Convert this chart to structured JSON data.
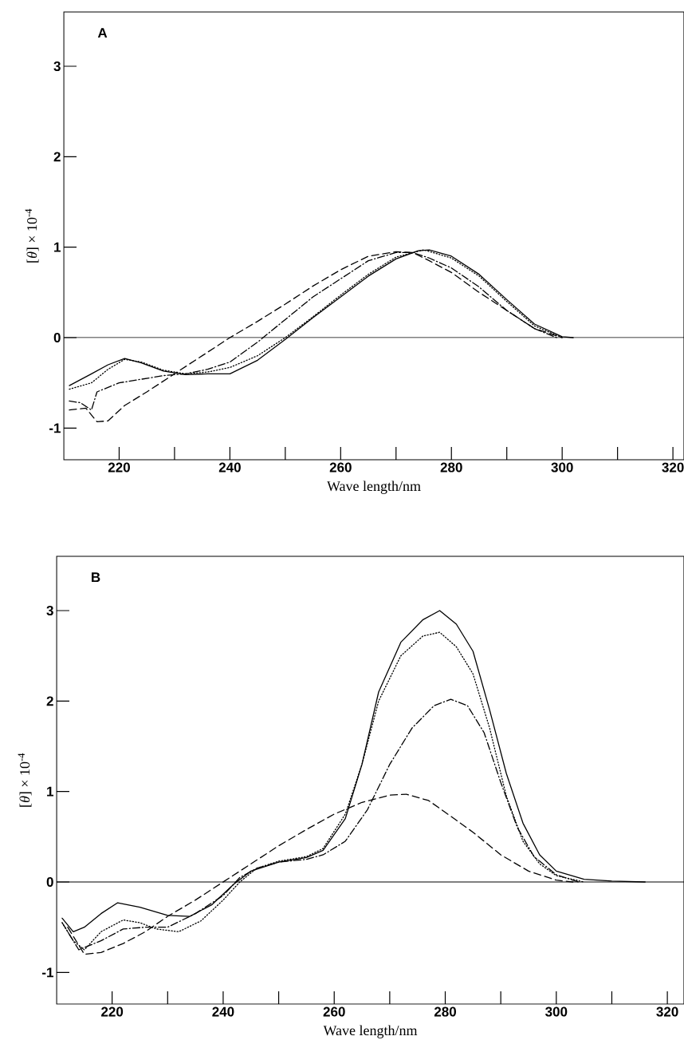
{
  "chart_data": [
    {
      "type": "line",
      "annotations": [
        "A"
      ],
      "xlabel": "Wave length/nm",
      "ylabel": "[*θ*] × 10$^{-4}$",
      "xlim": [
        210,
        322
      ],
      "ylim": [
        -1.35,
        3.6
      ],
      "xticks": [
        220,
        {
          "value": 230,
          "label": null
        },
        240,
        {
          "value": 250,
          "label": null
        },
        260,
        {
          "value": 270,
          "label": null
        },
        280,
        {
          "value": 290,
          "label": null
        },
        300,
        {
          "value": 310,
          "label": null
        },
        320
      ],
      "yticks": [
        -1,
        0,
        1,
        2,
        3
      ],
      "ref_lines": [
        {
          "axis": "y",
          "value": 0,
          "color": "#000000",
          "line_style": "solid"
        }
      ],
      "grid": false,
      "marker": "none",
      "series": [
        {
          "color": "#000000",
          "line_style": "solid",
          "x": [
            211,
            215,
            218,
            221,
            224,
            228,
            232,
            236,
            240,
            245,
            250,
            255,
            260,
            265,
            270,
            274,
            276,
            280,
            285,
            290,
            295,
            300,
            302
          ],
          "values": [
            -0.53,
            -0.4,
            -0.3,
            -0.23,
            -0.28,
            -0.37,
            -0.41,
            -0.4,
            -0.4,
            -0.25,
            -0.02,
            0.22,
            0.45,
            0.68,
            0.87,
            0.96,
            0.97,
            0.9,
            0.7,
            0.42,
            0.15,
            0.01,
            0
          ]
        },
        {
          "color": "#000000",
          "line_style": "dotted",
          "x": [
            211,
            215,
            218,
            221,
            224,
            228,
            232,
            236,
            240,
            245,
            250,
            255,
            260,
            265,
            270,
            275,
            280,
            285,
            290,
            295,
            300
          ],
          "values": [
            -0.57,
            -0.5,
            -0.35,
            -0.24,
            -0.27,
            -0.36,
            -0.4,
            -0.38,
            -0.33,
            -0.2,
            0,
            0.23,
            0.47,
            0.7,
            0.89,
            0.97,
            0.88,
            0.68,
            0.4,
            0.13,
            0
          ]
        },
        {
          "color": "#000000",
          "line_style": "dashdot",
          "x": [
            211,
            213,
            215,
            216,
            220,
            224,
            228,
            232,
            236,
            240,
            245,
            250,
            255,
            260,
            265,
            270,
            273,
            276,
            280,
            285,
            290,
            295,
            299
          ],
          "values": [
            -0.7,
            -0.72,
            -0.8,
            -0.6,
            -0.5,
            -0.46,
            -0.42,
            -0.4,
            -0.35,
            -0.27,
            -0.05,
            0.2,
            0.45,
            0.65,
            0.85,
            0.94,
            0.94,
            0.88,
            0.77,
            0.56,
            0.3,
            0.1,
            0
          ]
        },
        {
          "color": "#000000",
          "line_style": "dashed",
          "x": [
            211,
            214,
            216,
            218,
            221,
            225,
            230,
            235,
            240,
            245,
            250,
            255,
            260,
            265,
            270,
            273,
            276,
            280,
            285,
            290,
            295,
            300
          ],
          "values": [
            -0.8,
            -0.78,
            -0.93,
            -0.92,
            -0.75,
            -0.6,
            -0.4,
            -0.2,
            0,
            0.18,
            0.37,
            0.57,
            0.75,
            0.9,
            0.95,
            0.94,
            0.85,
            0.72,
            0.5,
            0.3,
            0.1,
            0
          ]
        }
      ]
    },
    {
      "type": "line",
      "annotations": [
        "B"
      ],
      "xlabel": "Wave length/nm",
      "ylabel": "[*θ*] × 10$^{-4}$",
      "xlim": [
        210,
        323
      ],
      "ylim": [
        -1.35,
        3.6
      ],
      "xticks": [
        220,
        {
          "value": 230,
          "label": null
        },
        240,
        {
          "value": 250,
          "label": null
        },
        260,
        {
          "value": 270,
          "label": null
        },
        280,
        {
          "value": 290,
          "label": null
        },
        300,
        {
          "value": 310,
          "label": null
        },
        320
      ],
      "yticks": [
        -1,
        0,
        1,
        2,
        3
      ],
      "ref_lines": [
        {
          "axis": "y",
          "value": 0,
          "color": "#000000",
          "line_style": "solid"
        }
      ],
      "grid": false,
      "marker": "none",
      "series": [
        {
          "color": "#000000",
          "line_style": "solid",
          "x": [
            211,
            213,
            215,
            218,
            221,
            225,
            230,
            234,
            238,
            242,
            245,
            250,
            255,
            258,
            262,
            265,
            268,
            272,
            276,
            279,
            282,
            285,
            288,
            291,
            294,
            297,
            300,
            305,
            310,
            316
          ],
          "values": [
            -0.4,
            -0.55,
            -0.5,
            -0.35,
            -0.23,
            -0.28,
            -0.37,
            -0.38,
            -0.25,
            -0.02,
            0.12,
            0.22,
            0.27,
            0.35,
            0.7,
            1.3,
            2.1,
            2.65,
            2.9,
            3.0,
            2.85,
            2.55,
            1.9,
            1.2,
            0.65,
            0.3,
            0.12,
            0.03,
            0.01,
            0
          ]
        },
        {
          "color": "#000000",
          "line_style": "dotted",
          "x": [
            211,
            213,
            215,
            218,
            222,
            225,
            228,
            232,
            236,
            240,
            243,
            246,
            250,
            255,
            258,
            262,
            265,
            268,
            272,
            276,
            279,
            282,
            285,
            288,
            291,
            294,
            297,
            300,
            305
          ],
          "values": [
            -0.45,
            -0.65,
            -0.75,
            -0.55,
            -0.42,
            -0.45,
            -0.52,
            -0.55,
            -0.43,
            -0.2,
            0,
            0.15,
            0.23,
            0.28,
            0.37,
            0.75,
            1.3,
            2.0,
            2.5,
            2.72,
            2.76,
            2.6,
            2.3,
            1.7,
            0.95,
            0.45,
            0.2,
            0.07,
            0
          ]
        },
        {
          "color": "#000000",
          "line_style": "dashdot",
          "x": [
            211,
            214,
            218,
            222,
            226,
            230,
            235,
            240,
            243,
            246,
            250,
            255,
            258,
            262,
            266,
            270,
            274,
            278,
            281,
            284,
            287,
            290,
            293,
            296,
            300,
            304
          ],
          "values": [
            -0.45,
            -0.75,
            -0.65,
            -0.52,
            -0.5,
            -0.5,
            -0.35,
            -0.15,
            0.05,
            0.15,
            0.22,
            0.25,
            0.3,
            0.45,
            0.8,
            1.3,
            1.7,
            1.95,
            2.02,
            1.95,
            1.65,
            1.1,
            0.6,
            0.28,
            0.08,
            0
          ]
        },
        {
          "color": "#000000",
          "line_style": "dashed",
          "x": [
            212,
            215,
            218,
            222,
            226,
            230,
            235,
            240,
            245,
            250,
            255,
            260,
            265,
            270,
            273,
            277,
            280,
            285,
            290,
            295,
            300,
            303
          ],
          "values": [
            -0.5,
            -0.8,
            -0.78,
            -0.68,
            -0.55,
            -0.38,
            -0.2,
            0,
            0.2,
            0.4,
            0.58,
            0.75,
            0.88,
            0.96,
            0.97,
            0.9,
            0.77,
            0.55,
            0.3,
            0.12,
            0.02,
            0
          ]
        }
      ]
    }
  ]
}
